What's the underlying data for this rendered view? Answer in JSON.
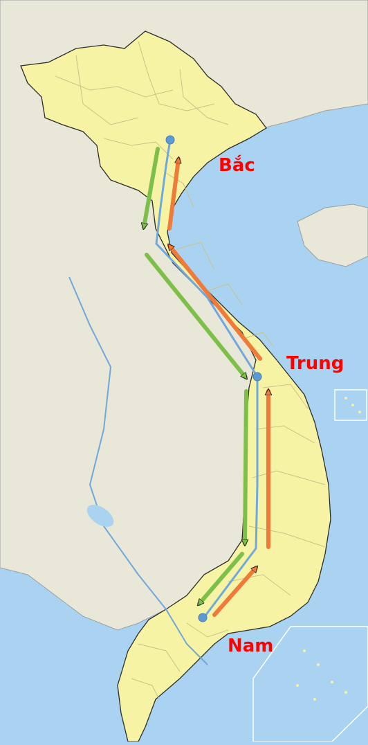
{
  "labels": {
    "north": "Bắc",
    "central": "Trung",
    "south": "Nam"
  },
  "colors": {
    "sea": "#a9d3f0",
    "neighbor_land": "#e9e7d8",
    "vietnam_land": "#f6f3a4",
    "province_border": "#c9c28a",
    "country_border": "#2b2b2b",
    "route_line": "#6fa8dc",
    "city_dot": "#5b9bd5",
    "southbound_arrow": "#7cc04a",
    "northbound_arrow": "#f07a3a",
    "label_text": "#ff0000"
  },
  "icons": {
    "city_marker": "dot",
    "direction_marker": "arrow"
  }
}
